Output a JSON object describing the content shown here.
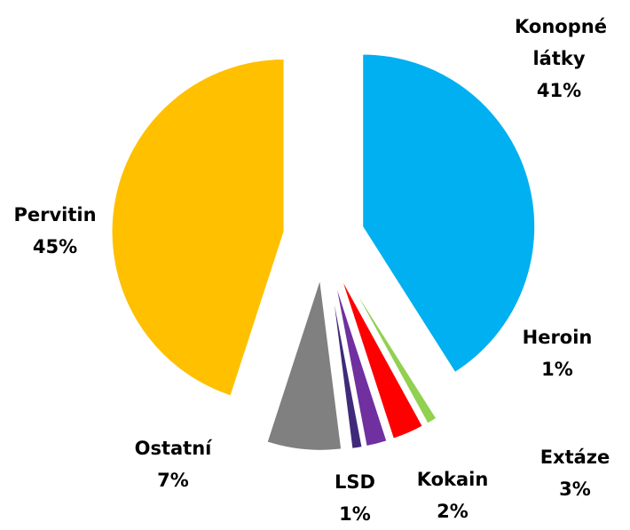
{
  "chart_data": {
    "type": "pie",
    "categories": [
      "Konopné látky",
      "Heroin",
      "Extáze",
      "Kokain",
      "LSD",
      "Ostatní",
      "Pervitin"
    ],
    "values": [
      41,
      1,
      3,
      2,
      1,
      7,
      45
    ],
    "value_labels": [
      "41%",
      "1%",
      "3%",
      "2%",
      "1%",
      "7%",
      "45%"
    ],
    "colors": [
      "#00b0f0",
      "#92d050",
      "#ff0000",
      "#7030a0",
      "#3f2b7a",
      "#808080",
      "#ffc000"
    ]
  }
}
